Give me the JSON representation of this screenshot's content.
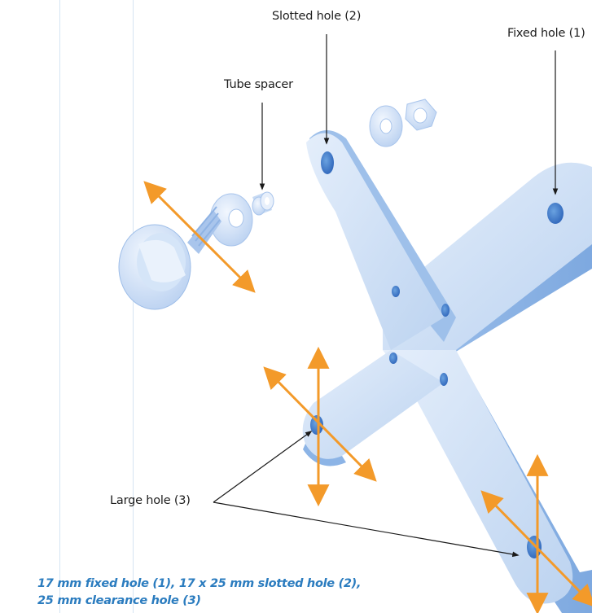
{
  "labels": {
    "slotted_hole": "Slotted hole (2)",
    "fixed_hole": "Fixed hole (1)",
    "tube_spacer": "Tube spacer",
    "large_hole": "Large hole (3)"
  },
  "caption": {
    "line1": "17 mm fixed hole (1), 17 x 25 mm slotted hole (2),",
    "line2": "25 mm clearance hole (3)"
  },
  "colors": {
    "plate": "#c9dcf3",
    "plate_edge": "#8cb4e6",
    "arrow": "#f39a2a",
    "caption": "#2b7cbf",
    "guide_lines": "#d5e4f3"
  }
}
